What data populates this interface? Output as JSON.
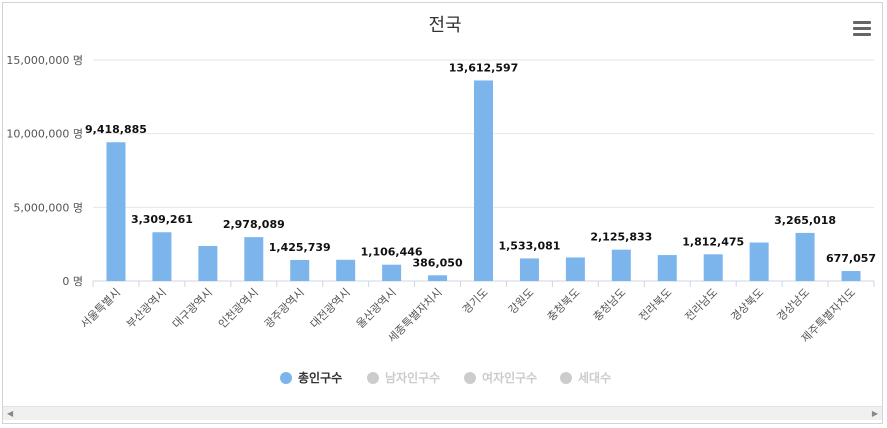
{
  "chart_data": {
    "type": "bar",
    "title": "전국",
    "ylim": [
      0,
      15000000
    ],
    "yticks": [
      {
        "value": 0,
        "label": "0 명"
      },
      {
        "value": 5000000,
        "label": "5,000,000 명"
      },
      {
        "value": 10000000,
        "label": "10,000,000 명"
      },
      {
        "value": 15000000,
        "label": "15,000,000 명"
      }
    ],
    "categories": [
      "서울특별시",
      "부산광역시",
      "대구광역시",
      "인천광역시",
      "광주광역시",
      "대전광역시",
      "울산광역시",
      "세종특별자치시",
      "경기도",
      "강원도",
      "충청북도",
      "충청남도",
      "전라북도",
      "전라남도",
      "경상북도",
      "경상남도",
      "제주특별자치도"
    ],
    "series": [
      {
        "name": "총인구수",
        "color": "#7cb5ec",
        "values": [
          9418885,
          3309261,
          2375306,
          2978089,
          1425739,
          1439836,
          1106446,
          386050,
          13612597,
          1533081,
          1598199,
          2125833,
          1760826,
          1812475,
          2612672,
          3265018,
          677057
        ],
        "labels": [
          "9,418,885",
          "3,309,261",
          "",
          "2,978,089",
          "1,425,739",
          "",
          "1,106,446",
          "386,050",
          "13,612,597",
          "1,533,081",
          "",
          "2,125,833",
          "",
          "1,812,475",
          "",
          "3,265,018",
          "677,057"
        ]
      }
    ],
    "legend": {
      "placement": "bottom-center",
      "items": [
        {
          "label": "총인구수",
          "active": true,
          "color": "#7cb5ec"
        },
        {
          "label": "남자인구수",
          "active": false,
          "color": "#cccccc"
        },
        {
          "label": "여자인구수",
          "active": false,
          "color": "#cccccc"
        },
        {
          "label": "세대수",
          "active": false,
          "color": "#cccccc"
        }
      ]
    },
    "grid": true
  },
  "ui": {
    "menu_icon": "hamburger-menu-icon",
    "scroll_left_icon": "◀",
    "scroll_right_icon": "▶"
  }
}
